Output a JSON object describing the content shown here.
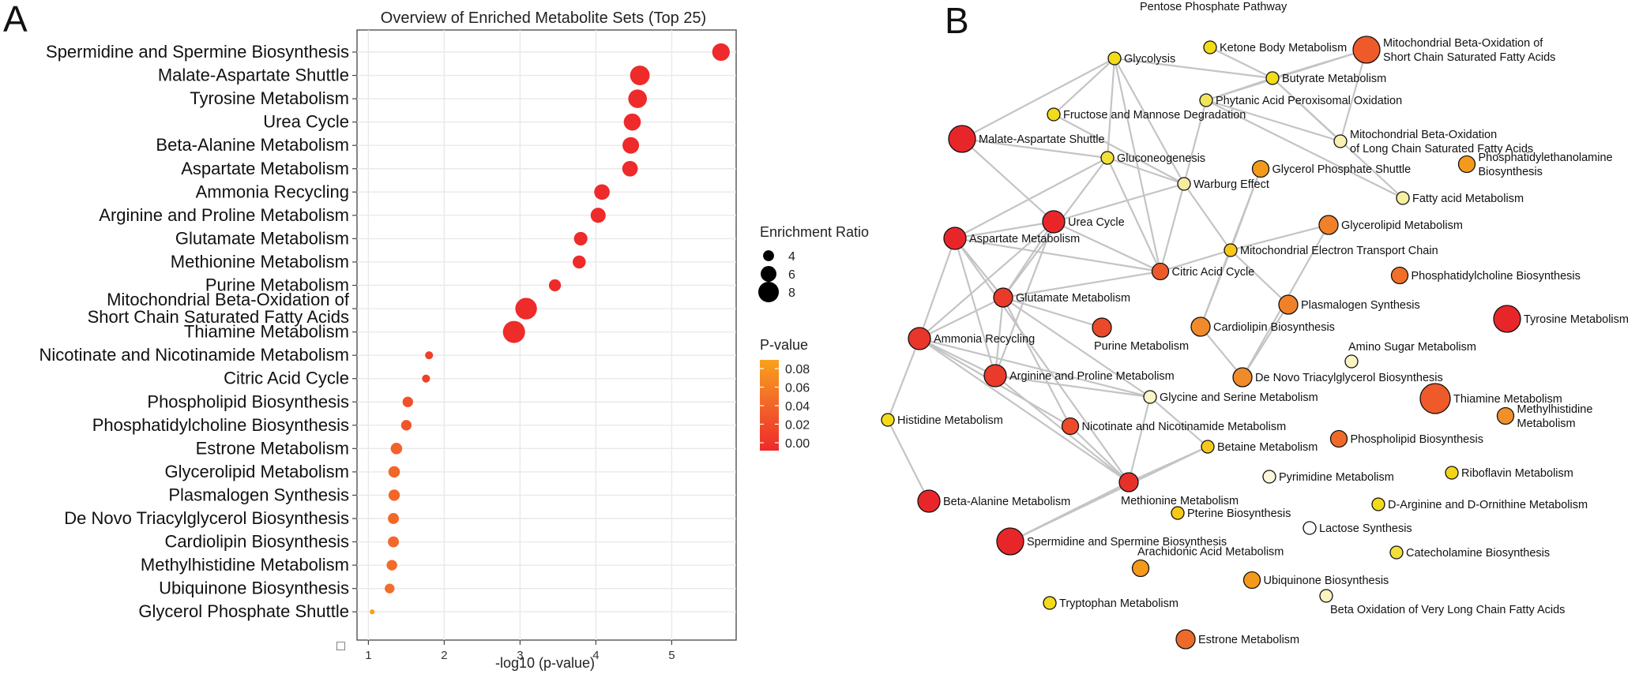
{
  "panels": {
    "a_letter": "A",
    "b_letter": "B"
  },
  "chart_data": [
    {
      "type": "scatter",
      "title": "Overview of Enriched Metabolite Sets (Top 25)",
      "xlabel": "-log10 (p-value)",
      "ylabel": "",
      "xlim": [
        0.85,
        5.85
      ],
      "xticks": [
        1,
        2,
        3,
        4,
        5
      ],
      "grid": true,
      "categories": [
        {
          "name": "Spermidine and Spermine Biosynthesis",
          "x": 5.65,
          "ratio": 6.4,
          "p": 2e-06
        },
        {
          "name": "Malate-Aspartate Shuttle",
          "x": 4.58,
          "ratio": 7.2,
          "p": 3e-05
        },
        {
          "name": "Tyrosine Metabolism",
          "x": 4.55,
          "ratio": 6.8,
          "p": 3e-05
        },
        {
          "name": "Urea Cycle",
          "x": 4.48,
          "ratio": 6.2,
          "p": 3e-05
        },
        {
          "name": "Beta-Alanine Metabolism",
          "x": 4.46,
          "ratio": 6.0,
          "p": 3e-05
        },
        {
          "name": "Aspartate Metabolism",
          "x": 4.45,
          "ratio": 5.6,
          "p": 4e-05
        },
        {
          "name": "Ammonia Recycling",
          "x": 4.08,
          "ratio": 5.6,
          "p": 0.0001
        },
        {
          "name": "Arginine and Proline Metabolism",
          "x": 4.03,
          "ratio": 5.4,
          "p": 0.0001
        },
        {
          "name": "Glutamate Metabolism",
          "x": 3.8,
          "ratio": 4.8,
          "p": 0.0002
        },
        {
          "name": "Methionine Metabolism",
          "x": 3.78,
          "ratio": 4.6,
          "p": 0.0002
        },
        {
          "name": "Purine Metabolism",
          "x": 3.46,
          "ratio": 4.2,
          "p": 0.0003
        },
        {
          "name": "Mitochondrial Beta-Oxidation of\nShort Chain Saturated Fatty Acids",
          "x": 3.08,
          "ratio": 8.0,
          "p": 0.0008
        },
        {
          "name": "Thiamine Metabolism",
          "x": 2.92,
          "ratio": 8.2,
          "p": 0.0012
        },
        {
          "name": "Nicotinate and Nicotinamide Metabolism",
          "x": 1.8,
          "ratio": 2.6,
          "p": 0.016
        },
        {
          "name": "Citric Acid Cycle",
          "x": 1.76,
          "ratio": 2.6,
          "p": 0.017
        },
        {
          "name": "Phospholipid Biosynthesis",
          "x": 1.52,
          "ratio": 3.6,
          "p": 0.03
        },
        {
          "name": "Phosphatidylcholine Biosynthesis",
          "x": 1.5,
          "ratio": 3.6,
          "p": 0.032
        },
        {
          "name": "Estrone Metabolism",
          "x": 1.37,
          "ratio": 4.0,
          "p": 0.043
        },
        {
          "name": "Glycerolipid Metabolism",
          "x": 1.34,
          "ratio": 4.0,
          "p": 0.046
        },
        {
          "name": "Plasmalogen Synthesis",
          "x": 1.34,
          "ratio": 3.9,
          "p": 0.046
        },
        {
          "name": "De Novo Triacylglycerol Biosynthesis",
          "x": 1.33,
          "ratio": 3.8,
          "p": 0.047
        },
        {
          "name": "Cardiolipin Biosynthesis",
          "x": 1.33,
          "ratio": 3.8,
          "p": 0.047
        },
        {
          "name": "Methylhistidine Metabolism",
          "x": 1.31,
          "ratio": 3.6,
          "p": 0.049
        },
        {
          "name": "Ubiquinone Biosynthesis",
          "x": 1.28,
          "ratio": 3.3,
          "p": 0.052
        },
        {
          "name": "Glycerol Phosphate Shuttle",
          "x": 1.05,
          "ratio": 1.4,
          "p": 0.089
        }
      ],
      "size_legend": {
        "title": "Enrichment Ratio",
        "values": [
          4,
          6,
          8
        ]
      },
      "color_legend": {
        "title": "P-value",
        "ticks": [
          "0.08",
          "0.06",
          "0.04",
          "0.02",
          "0.00"
        ],
        "low_color": "#ee2a2a",
        "high_color": "#f9a21b"
      },
      "corner_glyph": "□"
    },
    {
      "type": "network",
      "nodes": [
        {
          "id": "Pentose Phosphate Pathway",
          "label": "Pentose Phosphate Pathway",
          "color": "#ffffff",
          "size": 0
        },
        {
          "id": "Glycolysis",
          "label": "Glycolysis",
          "color": "#f2dc1a",
          "size": 1
        },
        {
          "id": "Ketone Body Metabolism",
          "label": "Ketone Body Metabolism",
          "color": "#f2dc1a",
          "size": 1
        },
        {
          "id": "Mito Short",
          "label": "Mitochondrial Beta-Oxidation of\nShort Chain Saturated Fatty Acids",
          "color": "#ee5a2a",
          "size": 3
        },
        {
          "id": "Butyrate Metabolism",
          "label": "Butyrate Metabolism",
          "color": "#f2dc1a",
          "size": 1
        },
        {
          "id": "Phytanic Acid Peroxisomal Oxidation",
          "label": "Phytanic Acid Peroxisomal Oxidation",
          "color": "#f2e45a",
          "size": 1
        },
        {
          "id": "Fructose and Mannose Degradation",
          "label": "Fructose and Mannose Degradation",
          "color": "#f2dc1a",
          "size": 1
        },
        {
          "id": "Mito Long",
          "label": "Mitochondrial Beta-Oxidation\nof Long Chain Saturated Fatty Acids",
          "color": "#f7f0b0",
          "size": 1
        },
        {
          "id": "Malate-Aspartate Shuttle",
          "label": "Malate-Aspartate Shuttle",
          "color": "#e8262a",
          "size": 3
        },
        {
          "id": "Gluconeogenesis",
          "label": "Gluconeogenesis",
          "color": "#f2e03a",
          "size": 1
        },
        {
          "id": "Glycerol Phosphate Shuttle",
          "label": "Glycerol Phosphate Shuttle",
          "color": "#f39a1b",
          "size": 1.5
        },
        {
          "id": "Phosphatidylethanolamine Biosynthesis",
          "label": "Phosphatidylethanolamine\nBiosynthesis",
          "color": "#f39a1b",
          "size": 1.5
        },
        {
          "id": "Warburg Effect",
          "label": "Warburg Effect",
          "color": "#f7eda0",
          "size": 1
        },
        {
          "id": "Fatty acid Metabolism",
          "label": "Fatty acid Metabolism",
          "color": "#f7f0a0",
          "size": 1
        },
        {
          "id": "Urea Cycle",
          "label": "Urea Cycle",
          "color": "#e8262a",
          "size": 2.5
        },
        {
          "id": "Glycerolipid Metabolism",
          "label": "Glycerolipid Metabolism",
          "color": "#f0802a",
          "size": 2
        },
        {
          "id": "Aspartate Metabolism",
          "label": "Aspartate Metabolism",
          "color": "#e8262a",
          "size": 2.5
        },
        {
          "id": "Mitochondrial Electron Transport Chain",
          "label": "Mitochondrial Electron Transport Chain",
          "color": "#f6c81a",
          "size": 1
        },
        {
          "id": "Citric Acid Cycle",
          "label": "Citric Acid Cycle",
          "color": "#ec5a2a",
          "size": 1.5
        },
        {
          "id": "Phosphatidylcholine Biosynthesis",
          "label": "Phosphatidylcholine Biosynthesis",
          "color": "#f0702a",
          "size": 1.5
        },
        {
          "id": "Glutamate Metabolism",
          "label": "Glutamate Metabolism",
          "color": "#ea3a2a",
          "size": 2
        },
        {
          "id": "Plasmalogen Synthesis",
          "label": "Plasmalogen Synthesis",
          "color": "#f0802a",
          "size": 2
        },
        {
          "id": "Purine Metabolism",
          "label": "Purine Metabolism",
          "color": "#ea4a2a",
          "size": 2
        },
        {
          "id": "Cardiolipin Biosynthesis",
          "label": "Cardiolipin Biosynthesis",
          "color": "#f08a2a",
          "size": 2
        },
        {
          "id": "Tyrosine Metabolism",
          "label": "Tyrosine Metabolism",
          "color": "#e8262a",
          "size": 3
        },
        {
          "id": "Ammonia Recycling",
          "label": "Ammonia Recycling",
          "color": "#e8362a",
          "size": 2.5
        },
        {
          "id": "Amino Sugar Metabolism",
          "label": "Amino Sugar Metabolism",
          "color": "#faf2c0",
          "size": 1
        },
        {
          "id": "Arginine and Proline Metabolism",
          "label": "Arginine and Proline Metabolism",
          "color": "#ea3a2a",
          "size": 2.5
        },
        {
          "id": "De Novo Triacylglycerol Biosynthesis",
          "label": "De Novo Triacylglycerol Biosynthesis",
          "color": "#f08a2a",
          "size": 2
        },
        {
          "id": "Glycine and Serine Metabolism",
          "label": "Glycine and Serine Metabolism",
          "color": "#fbf4c8",
          "size": 1
        },
        {
          "id": "Thiamine Metabolism",
          "label": "Thiamine Metabolism",
          "color": "#ee5a2a",
          "size": 3.5
        },
        {
          "id": "Histidine Metabolism",
          "label": "Histidine Metabolism",
          "color": "#f2dc1a",
          "size": 1
        },
        {
          "id": "Nicotinate and Nicotinamide Metabolism",
          "label": "Nicotinate and Nicotinamide Metabolism",
          "color": "#ec4a2a",
          "size": 1.5
        },
        {
          "id": "Methylhistidine Metabolism",
          "label": "Methylhistidine\nMetabolism",
          "color": "#f0902a",
          "size": 1.5
        },
        {
          "id": "Phospholipid Biosynthesis",
          "label": "Phospholipid Biosynthesis",
          "color": "#ef6a2a",
          "size": 1.5
        },
        {
          "id": "Betaine Metabolism",
          "label": "Betaine Metabolism",
          "color": "#f6c81a",
          "size": 1
        },
        {
          "id": "Riboflavin Metabolism",
          "label": "Riboflavin Metabolism",
          "color": "#f4d41a",
          "size": 1
        },
        {
          "id": "Pyrimidine Metabolism",
          "label": "Pyrimidine Metabolism",
          "color": "#fcf6dc",
          "size": 1
        },
        {
          "id": "Methionine Metabolism",
          "label": "Methionine Metabolism",
          "color": "#e8302a",
          "size": 2
        },
        {
          "id": "D-Arginine and D-Ornithine Metabolism",
          "label": "D-Arginine and D-Ornithine Metabolism",
          "color": "#f2dc1a",
          "size": 1
        },
        {
          "id": "Beta-Alanine Metabolism",
          "label": "Beta-Alanine Metabolism",
          "color": "#e8262a",
          "size": 2.5
        },
        {
          "id": "Pterine Biosynthesis",
          "label": "Pterine Biosynthesis",
          "color": "#f6c81a",
          "size": 1
        },
        {
          "id": "Lactose Synthesis",
          "label": "Lactose Synthesis",
          "color": "#ffffff",
          "size": 1
        },
        {
          "id": "Spermidine and Spermine Biosynthesis",
          "label": "Spermidine and Spermine Biosynthesis",
          "color": "#e8262a",
          "size": 3
        },
        {
          "id": "Catecholamine Biosynthesis",
          "label": "Catecholamine Biosynthesis",
          "color": "#f2e03a",
          "size": 1
        },
        {
          "id": "Arachidonic Acid Metabolism",
          "label": "Arachidonic Acid Metabolism",
          "color": "#f39a1b",
          "size": 1.5
        },
        {
          "id": "Ubiquinone Biosynthesis",
          "label": "Ubiquinone Biosynthesis",
          "color": "#f39a1b",
          "size": 1.5
        },
        {
          "id": "Beta Oxidation of Very Long Chain Fatty Acids",
          "label": "Beta Oxidation of Very Long Chain Fatty Acids",
          "color": "#fbf2c0",
          "size": 1
        },
        {
          "id": "Tryptophan Metabolism",
          "label": "Tryptophan Metabolism",
          "color": "#f2dc1a",
          "size": 1
        },
        {
          "id": "Estrone Metabolism",
          "label": "Estrone Metabolism",
          "color": "#ee6a2a",
          "size": 2
        }
      ],
      "edges": [
        [
          "Glycolysis",
          "Fructose and Mannose Degradation"
        ],
        [
          "Glycolysis",
          "Gluconeogenesis"
        ],
        [
          "Glycolysis",
          "Warburg Effect"
        ],
        [
          "Glycolysis",
          "Malate-Aspartate Shuttle"
        ],
        [
          "Glycolysis",
          "Butyrate Metabolism"
        ],
        [
          "Glycolysis",
          "Citric Acid Cycle"
        ],
        [
          "Ketone Body Metabolism",
          "Butyrate Metabolism"
        ],
        [
          "Butyrate Metabolism",
          "Mito Short"
        ],
        [
          "Butyrate Metabolism",
          "Phytanic Acid Peroxisomal Oxidation"
        ],
        [
          "Butyrate Metabolism",
          "Mito Long"
        ],
        [
          "Butyrate Metabolism",
          "Fatty acid Metabolism"
        ],
        [
          "Mito Short",
          "Mito Long"
        ],
        [
          "Mito Short",
          "Phytanic Acid Peroxisomal Oxidation"
        ],
        [
          "Phytanic Acid Peroxisomal Oxidation",
          "Warburg Effect"
        ],
        [
          "Phytanic Acid Peroxisomal Oxidation",
          "Fatty acid Metabolism"
        ],
        [
          "Phytanic Acid Peroxisomal Oxidation",
          "Mito Long"
        ],
        [
          "Fructose and Mannose Degradation",
          "Warburg Effect"
        ],
        [
          "Malate-Aspartate Shuttle",
          "Gluconeogenesis"
        ],
        [
          "Malate-Aspartate Shuttle",
          "Urea Cycle"
        ],
        [
          "Gluconeogenesis",
          "Warburg Effect"
        ],
        [
          "Gluconeogenesis",
          "Aspartate Metabolism"
        ],
        [
          "Gluconeogenesis",
          "Citric Acid Cycle"
        ],
        [
          "Gluconeogenesis",
          "Glutamate Metabolism"
        ],
        [
          "Warburg Effect",
          "Urea Cycle"
        ],
        [
          "Warburg Effect",
          "Citric Acid Cycle"
        ],
        [
          "Warburg Effect",
          "Mitochondrial Electron Transport Chain"
        ],
        [
          "Glycerol Phosphate Shuttle",
          "Mitochondrial Electron Transport Chain"
        ],
        [
          "Glycerol Phosphate Shuttle",
          "Cardiolipin Biosynthesis"
        ],
        [
          "Glycerolipid Metabolism",
          "Mitochondrial Electron Transport Chain"
        ],
        [
          "Glycerolipid Metabolism",
          "De Novo Triacylglycerol Biosynthesis"
        ],
        [
          "Mitochondrial Electron Transport Chain",
          "Citric Acid Cycle"
        ],
        [
          "Mitochondrial Electron Transport Chain",
          "Cardiolipin Biosynthesis"
        ],
        [
          "Mitochondrial Electron Transport Chain",
          "Plasmalogen Synthesis"
        ],
        [
          "Plasmalogen Synthesis",
          "De Novo Triacylglycerol Biosynthesis"
        ],
        [
          "Cardiolipin Biosynthesis",
          "De Novo Triacylglycerol Biosynthesis"
        ],
        [
          "Urea Cycle",
          "Aspartate Metabolism"
        ],
        [
          "Urea Cycle",
          "Citric Acid Cycle"
        ],
        [
          "Urea Cycle",
          "Glutamate Metabolism"
        ],
        [
          "Urea Cycle",
          "Ammonia Recycling"
        ],
        [
          "Urea Cycle",
          "Arginine and Proline Metabolism"
        ],
        [
          "Aspartate Metabolism",
          "Glutamate Metabolism"
        ],
        [
          "Aspartate Metabolism",
          "Ammonia Recycling"
        ],
        [
          "Aspartate Metabolism",
          "Arginine and Proline Metabolism"
        ],
        [
          "Aspartate Metabolism",
          "Methionine Metabolism"
        ],
        [
          "Aspartate Metabolism",
          "Citric Acid Cycle"
        ],
        [
          "Glutamate Metabolism",
          "Ammonia Recycling"
        ],
        [
          "Glutamate Metabolism",
          "Arginine and Proline Metabolism"
        ],
        [
          "Glutamate Metabolism",
          "Purine Metabolism"
        ],
        [
          "Glutamate Metabolism",
          "Citric Acid Cycle"
        ],
        [
          "Glutamate Metabolism",
          "Glycine and Serine Metabolism"
        ],
        [
          "Glutamate Metabolism",
          "Nicotinate and Nicotinamide Metabolism"
        ],
        [
          "Ammonia Recycling",
          "Arginine and Proline Metabolism"
        ],
        [
          "Ammonia Recycling",
          "Histidine Metabolism"
        ],
        [
          "Ammonia Recycling",
          "Glycine and Serine Metabolism"
        ],
        [
          "Ammonia Recycling",
          "Nicotinate and Nicotinamide Metabolism"
        ],
        [
          "Ammonia Recycling",
          "Methionine Metabolism"
        ],
        [
          "Arginine and Proline Metabolism",
          "Glycine and Serine Metabolism"
        ],
        [
          "Arginine and Proline Metabolism",
          "Methionine Metabolism"
        ],
        [
          "Glycine and Serine Metabolism",
          "Methionine Metabolism"
        ],
        [
          "Glycine and Serine Metabolism",
          "Betaine Metabolism"
        ],
        [
          "Histidine Metabolism",
          "Beta-Alanine Metabolism"
        ],
        [
          "Betaine Metabolism",
          "Methionine Metabolism"
        ],
        [
          "Betaine Metabolism",
          "Spermidine and Spermine Biosynthesis"
        ],
        [
          "Methionine Metabolism",
          "Spermidine and Spermine Biosynthesis"
        ],
        [
          "Nicotinate and Nicotinamide Metabolism",
          "Methionine Metabolism"
        ]
      ]
    }
  ]
}
